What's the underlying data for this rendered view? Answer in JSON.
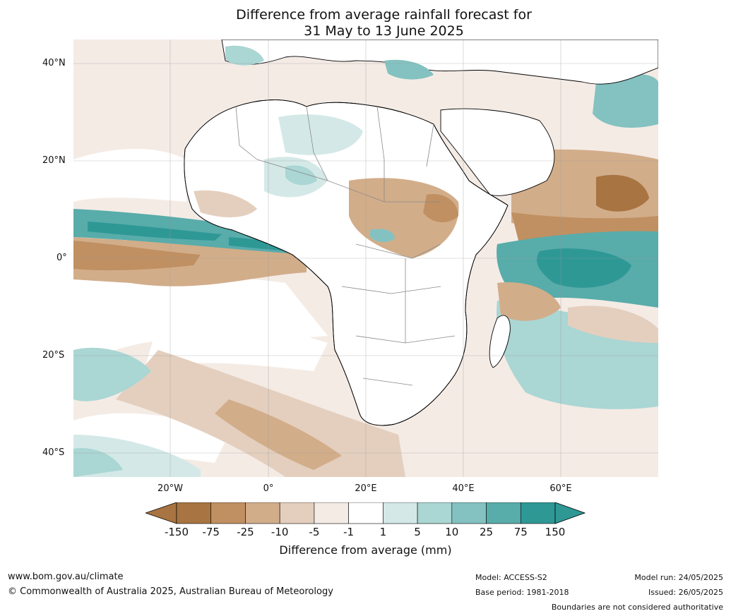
{
  "title": {
    "line1": "Difference from average rainfall forecast for",
    "line2": "31 May to 13 June 2025"
  },
  "map": {
    "region": "Africa",
    "lat_labels": [
      "40°N",
      "20°N",
      "0°",
      "20°S",
      "40°S"
    ],
    "lon_labels": [
      "20°W",
      "0°",
      "20°E",
      "40°E",
      "60°E"
    ],
    "gridlines": true
  },
  "legend": {
    "title": "Difference from average (mm)",
    "ticks": [
      "-150",
      "-75",
      "-25",
      "-10",
      "-5",
      "-1",
      "1",
      "5",
      "10",
      "25",
      "75",
      "150"
    ],
    "colors": [
      "#a87441",
      "#c09062",
      "#d2ad8a",
      "#e4cfbe",
      "#f4ebe5",
      "#ffffff",
      "#d4e9e7",
      "#aad6d4",
      "#83c2c0",
      "#58acaa",
      "#2e9895"
    ],
    "end_left_color": "#a87441",
    "end_right_color": "#2e9895"
  },
  "footer": {
    "website": "www.bom.gov.au/climate",
    "copyright": "© Commonwealth of Australia 2025, Australian Bureau of Meteorology",
    "model": "Model: ACCESS-S2",
    "base_period": "Base period: 1981-2018",
    "model_run": "Model run: 24/05/2025",
    "issued": "Issued: 26/05/2025",
    "disclaimer": "Boundaries are not considered authoritative"
  }
}
